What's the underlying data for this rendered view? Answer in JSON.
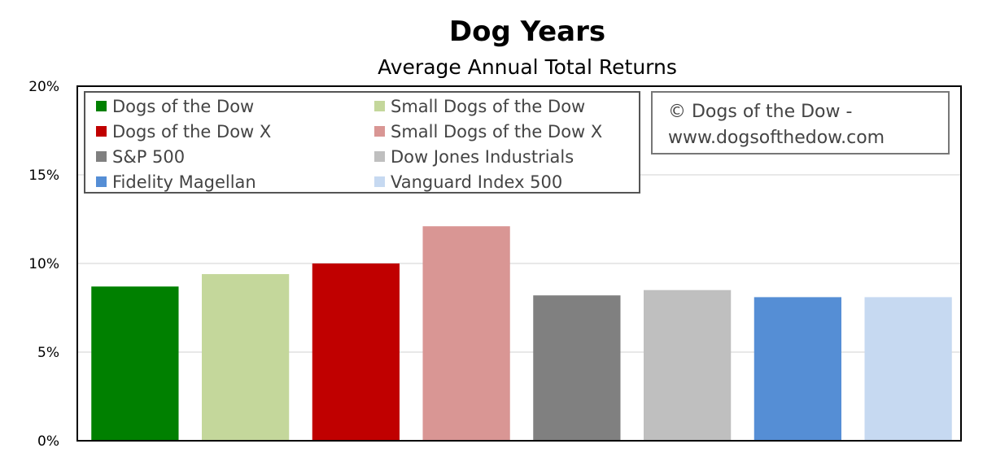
{
  "chart_data": {
    "type": "bar",
    "title": "Dog Years",
    "subtitle": "Average Annual Total Returns",
    "xlabel": "",
    "ylabel": "",
    "ylim": [
      0,
      20
    ],
    "y_ticks": [
      0,
      5,
      10,
      15,
      20
    ],
    "y_tick_format": "%",
    "grid": true,
    "legend_placement": "top-left",
    "categories": [
      "Dogs of the Dow",
      "Small Dogs of the Dow",
      "Dogs of the Dow X",
      "Small Dogs of the Dow X",
      "S&P 500",
      "Dow Jones Industrials",
      "Fidelity Magellan",
      "Vanguard Index 500"
    ],
    "values": [
      8.7,
      9.4,
      10.0,
      12.1,
      8.2,
      8.5,
      8.1,
      8.1
    ],
    "colors": [
      "#008000",
      "#c4d79b",
      "#c00000",
      "#d99694",
      "#808080",
      "#bfbfbf",
      "#558ed5",
      "#c6d9f1"
    ],
    "annotation": [
      "© Dogs of the Dow -",
      "www.dogsofthedow.com"
    ]
  }
}
